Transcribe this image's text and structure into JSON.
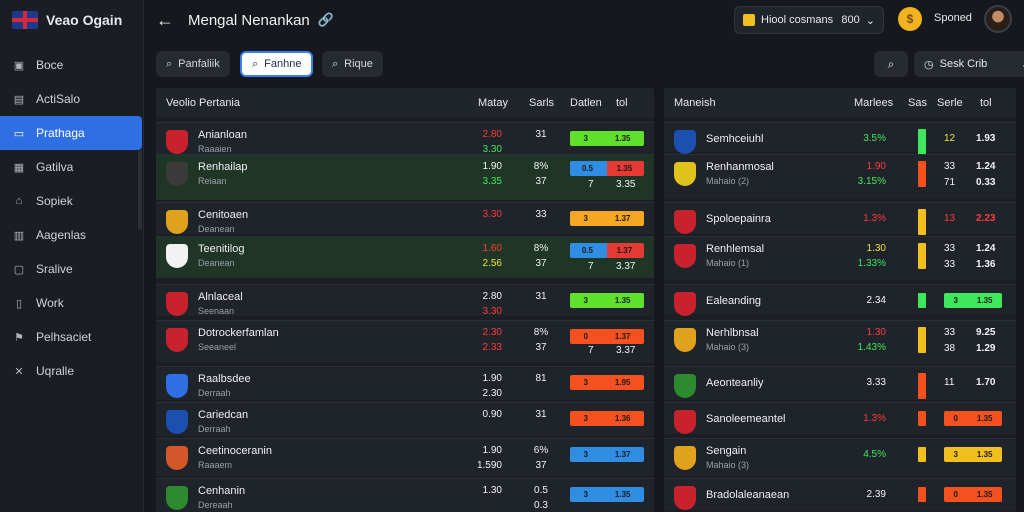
{
  "brand": {
    "name": "Veao Ogain"
  },
  "sidebar": {
    "items": [
      {
        "label": "Boce",
        "icon": "briefcase-icon",
        "active": false
      },
      {
        "label": "ActiSalo",
        "icon": "calendar-icon",
        "active": false
      },
      {
        "label": "Prathaga",
        "icon": "card-icon",
        "active": true
      },
      {
        "label": "Gatilva",
        "icon": "grid-icon",
        "active": false
      },
      {
        "label": "Sopiek",
        "icon": "home-icon",
        "active": false
      },
      {
        "label": "Aagenlas",
        "icon": "document-icon",
        "active": false
      },
      {
        "label": "Sralive",
        "icon": "monitor-icon",
        "active": false
      },
      {
        "label": "Work",
        "icon": "folder-icon",
        "active": false
      },
      {
        "label": "Pelhsaciet",
        "icon": "flag-icon",
        "active": false
      },
      {
        "label": "Uqralle",
        "icon": "close-icon",
        "active": false
      }
    ]
  },
  "header": {
    "title": "Mengal Nenankan",
    "wallet_label": "Hiool cosmans",
    "wallet_value": "800",
    "user_name": "Sponed"
  },
  "filters": {
    "chips": [
      {
        "label": "Panfaliik",
        "active": false
      },
      {
        "label": "Fanhne",
        "active": true
      },
      {
        "label": "Rique",
        "active": false
      }
    ],
    "sort_label": "Sesk Crib"
  },
  "left_panel": {
    "headers": {
      "name": "Veolio Pertania",
      "c1": "Matay",
      "c2": "Sarls",
      "c3": "Datlen",
      "c4": "tol"
    },
    "matches": [
      {
        "highlight": false,
        "crest": "#c8232c",
        "team": "Anianloan",
        "sub": "Raaaien",
        "o1": "2.80",
        "o1c": "red",
        "o2": "3.30",
        "o2c": "green",
        "s1": "31",
        "s2": "",
        "barColor": "#5fe02b",
        "b1": "3",
        "b2": "1.35",
        "b3": ""
      },
      {
        "highlight": true,
        "crest": "#3a3a3a",
        "team": "Renhailap",
        "sub": "Reiaan",
        "o1": "1.90",
        "o1c": "white",
        "o2": "3.35",
        "o2c": "green",
        "s1": "8%",
        "s2": "37",
        "barColor": "split",
        "b1": "0.5",
        "b2": "1.35",
        "b3": "3.35",
        "extra": "7"
      },
      {
        "highlight": false,
        "crest": "#e0a21c",
        "team": "Cenitoaen",
        "sub": "Deanean",
        "o1": "3.30",
        "o1c": "red",
        "o2": "",
        "o2c": "white",
        "s1": "33",
        "s2": "",
        "barColor": "#f5a623",
        "b1": "3",
        "b2": "1.37",
        "b3": ""
      },
      {
        "highlight": true,
        "crest": "#f2f2f2",
        "team": "Teenitilog",
        "sub": "Deanean",
        "o1": "1.60",
        "o1c": "red",
        "o2": "2.56",
        "o2c": "yellow",
        "s1": "8%",
        "s2": "37",
        "barColor": "split",
        "b1": "0.5",
        "b2": "1.37",
        "b3": "3.37",
        "extra": "7"
      },
      {
        "highlight": false,
        "crest": "#c8232c",
        "team": "Alnlaceal",
        "sub": "Seenaan",
        "o1": "2.80",
        "o1c": "white",
        "o2": "3.30",
        "o2c": "red",
        "s1": "31",
        "s2": "",
        "barColor": "#5fe02b",
        "b1": "3",
        "b2": "1.35",
        "b3": ""
      },
      {
        "highlight": false,
        "crest": "#c8232c",
        "team": "Dotrockerfamlan",
        "sub": "Seeaneel",
        "o1": "2.30",
        "o1c": "red",
        "o2": "2.33",
        "o2c": "red",
        "s1": "8%",
        "s2": "37",
        "barColor": "#f4511e",
        "b1": "0",
        "b2": "1.37",
        "b3": "3.37",
        "extra": "7"
      },
      {
        "highlight": false,
        "crest": "#2f6fe4",
        "team": "Raalbsdee",
        "sub": "Derraah",
        "o1": "1.90",
        "o1c": "white",
        "o2": "2.30",
        "o2c": "white",
        "s1": "81",
        "s2": "",
        "barColor": "#f4511e",
        "b1": "3",
        "b2": "1.95",
        "b3": ""
      },
      {
        "highlight": false,
        "crest": "#1d4fb0",
        "team": "Cariedcan",
        "sub": "Derraah",
        "o1": "0.90",
        "o1c": "white",
        "o2": "",
        "o2c": "white",
        "s1": "31",
        "s2": "",
        "barColor": "#f4511e",
        "b1": "3",
        "b2": "1.36",
        "b3": ""
      },
      {
        "highlight": false,
        "crest": "#d4572a",
        "team": "Ceetinoceranin",
        "sub": "Raaaem",
        "o1": "1.90",
        "o1c": "white",
        "o2": "1.590",
        "o2c": "white",
        "s1": "6%",
        "s2": "37",
        "barColor": "#2f8ee4",
        "b1": "3",
        "b2": "1.37",
        "b3": ""
      },
      {
        "highlight": false,
        "crest": "#2e8a2e",
        "team": "Cenhanin",
        "sub": "Dereaah",
        "o1": "1.30",
        "o1c": "white",
        "o2": "",
        "o2c": "white",
        "s1": "0.5",
        "s2": "0.3",
        "barColor": "#2f8ee4",
        "b1": "3",
        "b2": "1.35",
        "b3": ""
      }
    ]
  },
  "right_panel": {
    "headers": {
      "name": "Maneish",
      "c1": "Marlees",
      "c2": "Sas",
      "c3": "Serle",
      "c4": "tol"
    },
    "matches": [
      {
        "highlight": false,
        "crest": "#1d4fb0",
        "team": "Semhceiuhl",
        "sub": "",
        "p1": "3.5%",
        "p1c": "green",
        "vbar": "#3fe85a",
        "n1": "12",
        "n1c": "yellow",
        "n2": "1.93",
        "n2c": "white"
      },
      {
        "highlight": false,
        "crest": "#e0c21c",
        "team": "Renhanmosal",
        "sub": "Mahaio (2)",
        "p1": "1.90",
        "p1c": "red",
        "p2": "3.15%",
        "p2c": "green",
        "vbar": "#f4511e",
        "n1": "33",
        "n1c": "white",
        "n1b": "71",
        "n2": "1.24",
        "n2c": "white",
        "n2b": "0.33"
      },
      {
        "highlight": false,
        "crest": "#c8232c",
        "team": "Spoloepainra",
        "sub": "",
        "p1": "1.3%",
        "p1c": "red",
        "vbar": "#f2c01e",
        "n1": "13",
        "n1c": "red",
        "n2": "2.23",
        "n2c": "red"
      },
      {
        "highlight": false,
        "crest": "#c8232c",
        "team": "Renhlemsal",
        "sub": "Mahaio (1)",
        "p1": "1.30",
        "p1c": "yellow",
        "p2": "1.33%",
        "p2c": "green",
        "vbar": "#f2c01e",
        "n1": "33",
        "n1c": "white",
        "n1b": "33",
        "n2": "1.24",
        "n2c": "white",
        "n2b": "1.36"
      },
      {
        "highlight": false,
        "crest": "#c8232c",
        "team": "Ealeanding",
        "sub": "",
        "p1": "2.34",
        "p1c": "white",
        "vbar": "#3fe85a",
        "barColor": "#3fe85a",
        "b1": "3",
        "b2": "1.35"
      },
      {
        "highlight": false,
        "crest": "#e0a21c",
        "team": "Nerhlbnsal",
        "sub": "Mahaio (3)",
        "p1": "1.30",
        "p1c": "red",
        "p2": "1.43%",
        "p2c": "green",
        "vbar": "#f2c01e",
        "n1": "33",
        "n1c": "white",
        "n1b": "38",
        "n2": "9.25",
        "n2c": "white",
        "n2b": "1.29"
      },
      {
        "highlight": false,
        "crest": "#2e8a2e",
        "team": "Aeonteanliy",
        "sub": "",
        "p1": "3.33",
        "p1c": "white",
        "vbar": "#f4511e",
        "n1": "11",
        "n1c": "white",
        "n2": "1.70",
        "n2c": "white"
      },
      {
        "highlight": false,
        "crest": "#c8232c",
        "team": "Sanoleemeantel",
        "sub": "",
        "p1": "1.3%",
        "p1c": "red",
        "vbar": "#f4511e",
        "barColor": "#f4511e",
        "b1": "0",
        "b2": "1.35"
      },
      {
        "highlight": false,
        "crest": "#e0a21c",
        "team": "Sengain",
        "sub": "Mahaio (3)",
        "p1": "4.5%",
        "p1c": "green",
        "vbar": "#f2c01e",
        "barColor": "#f2c01e",
        "b1": "3",
        "b2": "1.35"
      },
      {
        "highlight": false,
        "crest": "#c8232c",
        "team": "Bradolaleanaean",
        "sub": "",
        "p1": "2.39",
        "p1c": "white",
        "vbar": "#f4511e",
        "barColor": "#f4511e",
        "b1": "0",
        "b2": "1.35"
      }
    ]
  }
}
